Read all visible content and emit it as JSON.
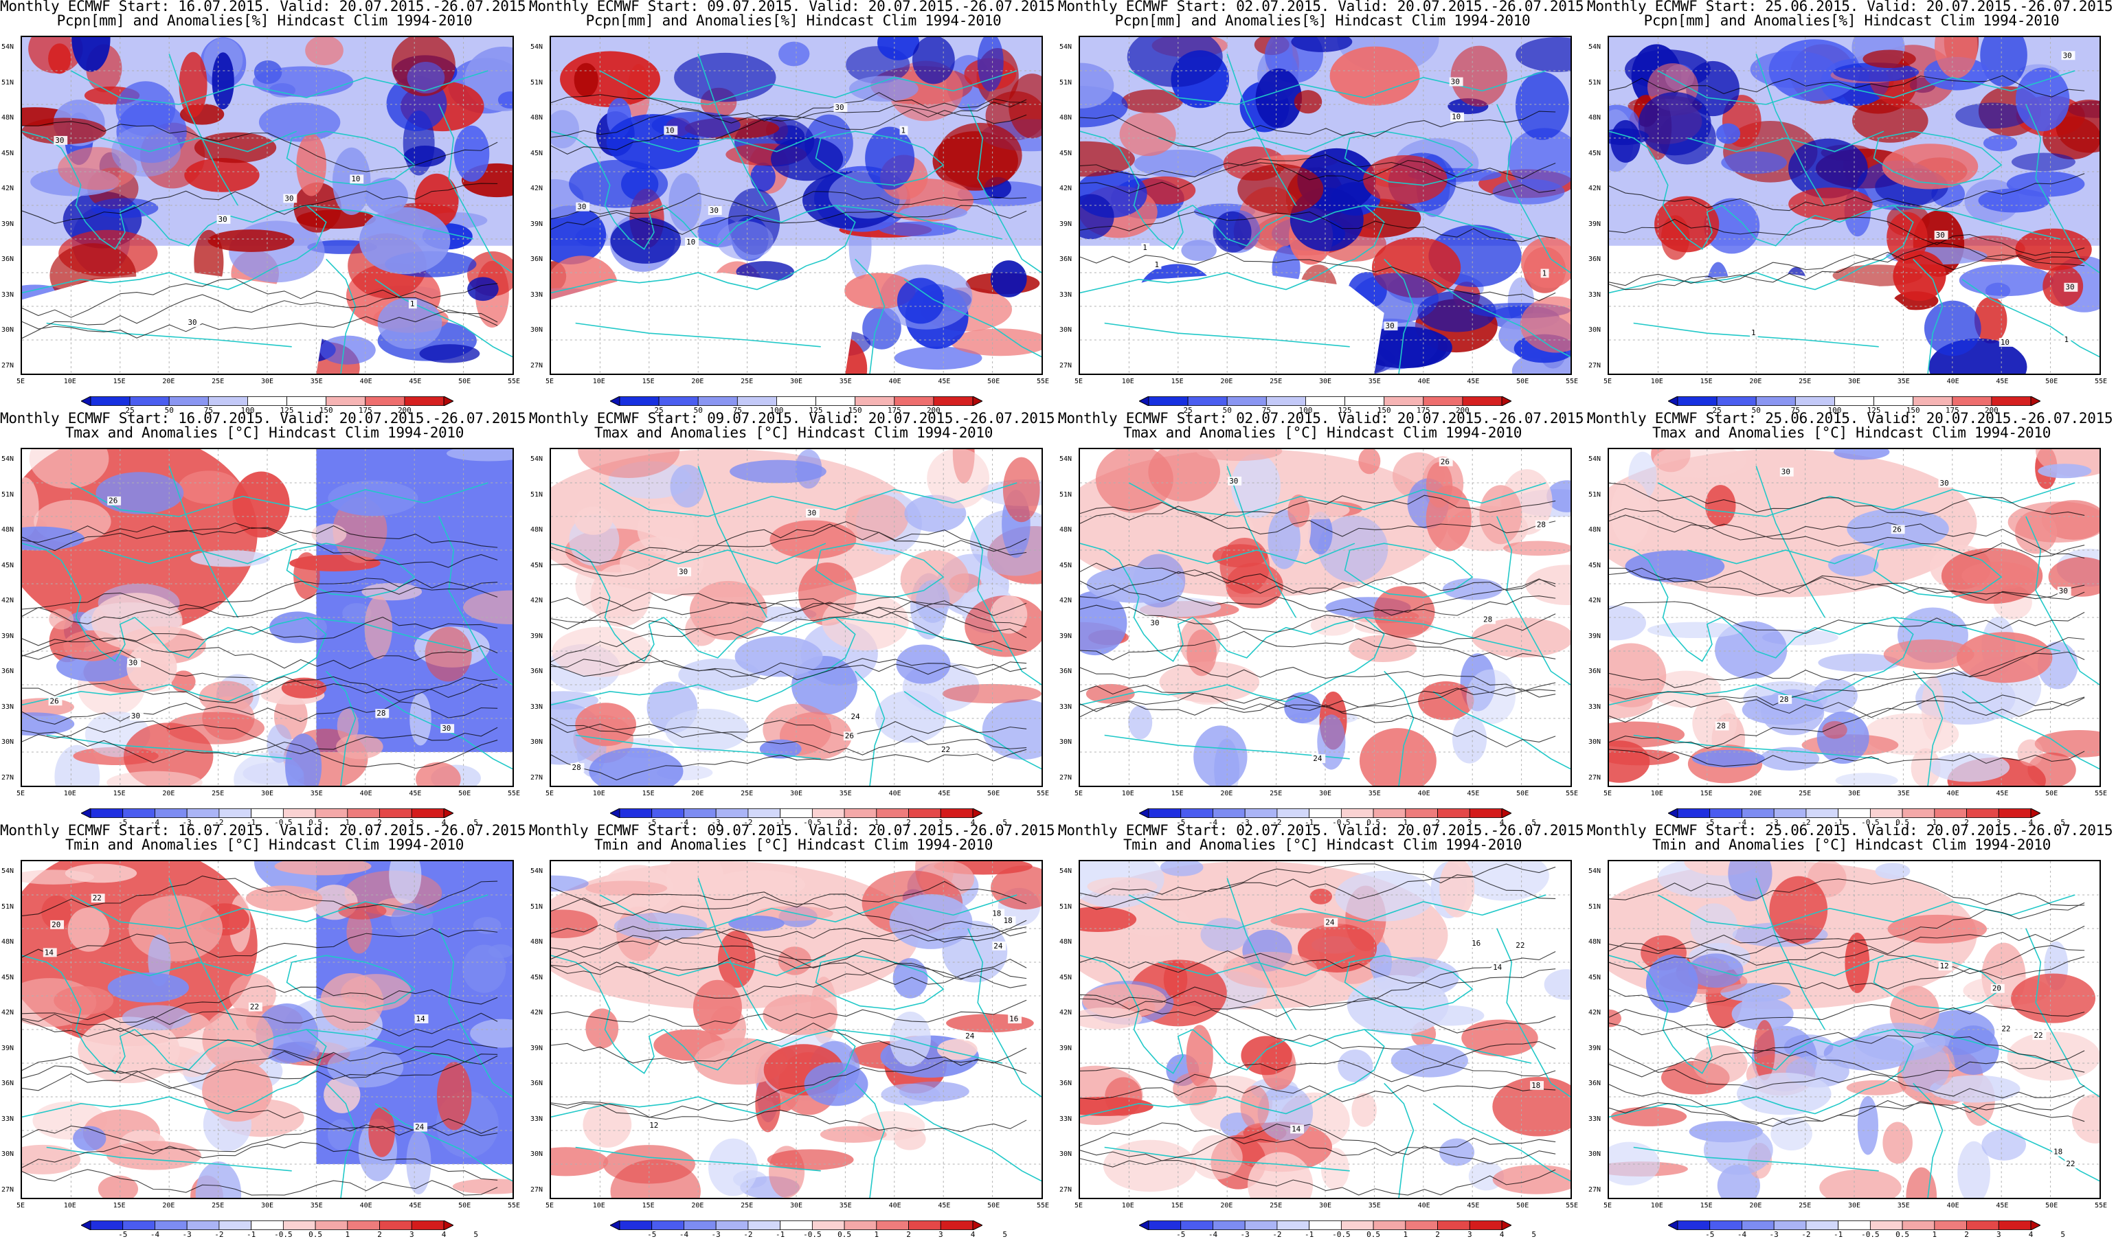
{
  "rows": [
    {
      "title2": "Pcpn[mm] and Anomalies[%] Hindcast Clim 1994-2010",
      "field": "pcpn",
      "colorbar": {
        "labels": [
          "25",
          "50",
          "75",
          "100",
          "125",
          "150",
          "175",
          "200"
        ],
        "colors": [
          "#0a12b4",
          "#1730e0",
          "#4b5ef0",
          "#8a96f2",
          "#c3c9f8",
          "#ffffff",
          "#ffffff",
          "#f6b4b4",
          "#ee6e6e",
          "#d62020",
          "#b00808"
        ]
      }
    },
    {
      "title2": "Tmax and Anomalies [°C] Hindcast Clim 1994-2010",
      "field": "tmax",
      "colorbar": {
        "labels": [
          "-5",
          "-4",
          "-3",
          "-2",
          "-1",
          "-0.5",
          "0.5",
          "1",
          "2",
          "3",
          "4",
          "5"
        ],
        "colors": [
          "#0a10b0",
          "#1f2fe0",
          "#4a5cf0",
          "#7d8cf2",
          "#aab4f6",
          "#d2d8fa",
          "#ffffff",
          "#fad2d2",
          "#f4a8a8",
          "#ee7c7c",
          "#e44848",
          "#d41c1c",
          "#b80606"
        ]
      }
    },
    {
      "title2": "Tmin and Anomalies [°C] Hindcast Clim 1994-2010",
      "field": "tmin",
      "colorbar": {
        "labels": [
          "-5",
          "-4",
          "-3",
          "-2",
          "-1",
          "-0.5",
          "0.5",
          "1",
          "2",
          "3",
          "4",
          "5"
        ],
        "colors": [
          "#0a10b0",
          "#1f2fe0",
          "#4a5cf0",
          "#7d8cf2",
          "#aab4f6",
          "#d2d8fa",
          "#ffffff",
          "#fad2d2",
          "#f4a8a8",
          "#ee7c7c",
          "#e44848",
          "#d41c1c",
          "#b80606"
        ]
      }
    }
  ],
  "columns": [
    {
      "title1": "Monthly ECMWF Start: 16.07.2015. Valid: 20.07.2015.-26.07.2015."
    },
    {
      "title1": "Monthly ECMWF Start: 09.07.2015. Valid: 20.07.2015.-26.07.2015."
    },
    {
      "title1": "Monthly ECMWF Start: 02.07.2015. Valid: 20.07.2015.-26.07.2015."
    },
    {
      "title1": "Monthly ECMWF Start: 25.06.2015. Valid: 20.07.2015.-26.07.2015."
    }
  ],
  "lat_labels": [
    "54N",
    "51N",
    "48N",
    "45N",
    "42N",
    "39N",
    "36N",
    "33N",
    "30N",
    "27N"
  ],
  "lon_labels": [
    "5E",
    "10E",
    "15E",
    "20E",
    "25E",
    "30E",
    "35E",
    "40E",
    "45E",
    "50E",
    "55E"
  ],
  "map_extent": {
    "lon": [
      5,
      55
    ],
    "lat": [
      25.5,
      55
    ]
  },
  "colors": {
    "border": "#20c8c8",
    "contour": "#000000",
    "grid": "#b0b0b0"
  },
  "contour_labels": {
    "pcpn": [
      "1",
      "10",
      "30"
    ],
    "tmax": [
      "22",
      "24",
      "26",
      "28",
      "30"
    ],
    "tmin": [
      "12",
      "14",
      "16",
      "18",
      "20",
      "22",
      "24"
    ]
  }
}
